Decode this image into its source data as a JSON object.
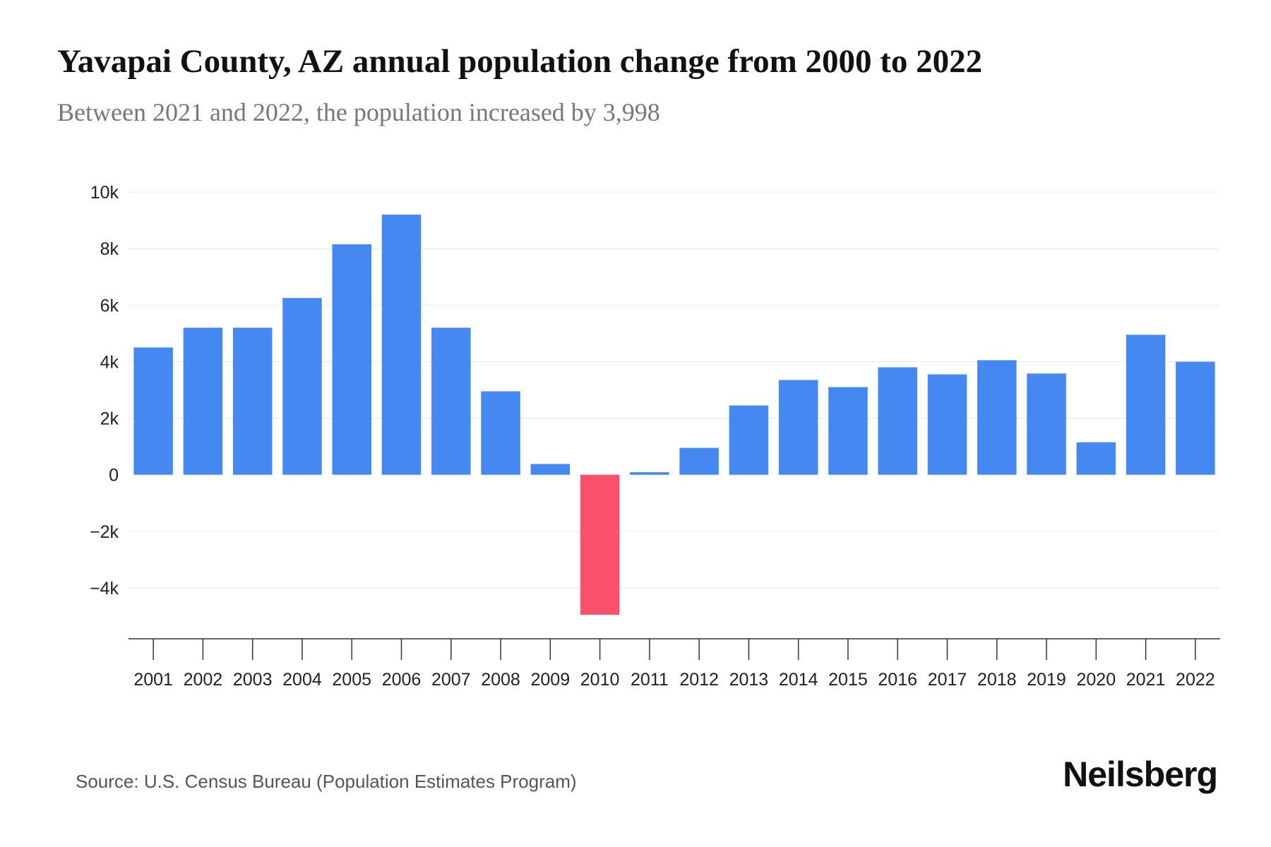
{
  "chart_data": {
    "type": "bar",
    "title": "Yavapai County, AZ annual population change from 2000 to 2022",
    "subtitle": "Between 2021 and 2022, the population increased by 3,998",
    "categories": [
      "2001",
      "2002",
      "2003",
      "2004",
      "2005",
      "2006",
      "2007",
      "2008",
      "2009",
      "2010",
      "2011",
      "2012",
      "2013",
      "2014",
      "2015",
      "2016",
      "2017",
      "2018",
      "2019",
      "2020",
      "2021",
      "2022"
    ],
    "values": [
      4500,
      5200,
      5200,
      6250,
      8150,
      9200,
      5200,
      2950,
      380,
      -4950,
      90,
      950,
      2450,
      3350,
      3100,
      3800,
      3550,
      4050,
      3580,
      1150,
      4950,
      3998
    ],
    "yticks": [
      {
        "value": -4000,
        "label": "−4k"
      },
      {
        "value": -2000,
        "label": "−2k"
      },
      {
        "value": 0,
        "label": "0"
      },
      {
        "value": 2000,
        "label": "2k"
      },
      {
        "value": 4000,
        "label": "4k"
      },
      {
        "value": 6000,
        "label": "6k"
      },
      {
        "value": 8000,
        "label": "8k"
      },
      {
        "value": 10000,
        "label": "10k"
      }
    ],
    "ylim": [
      -5800,
      10000
    ],
    "xlabel": "",
    "ylabel": "",
    "grid": true,
    "legend": "none",
    "colors": {
      "positive": "#4688f1",
      "negative": "#f9506c",
      "grid": "#e8e8e8",
      "axis": "#333333",
      "tick_text": "#222222"
    }
  },
  "footer": {
    "source": "Source: U.S. Census Bureau (Population Estimates Program)",
    "brand": "Neilsberg"
  }
}
